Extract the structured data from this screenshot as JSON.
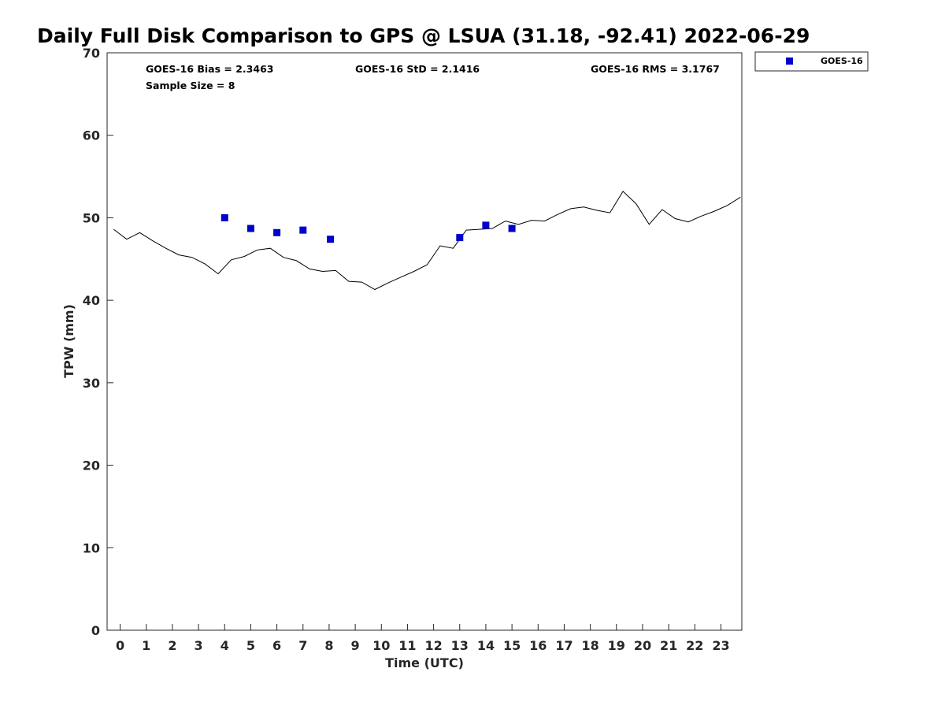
{
  "chart_data": {
    "type": "line+scatter",
    "title": "Daily Full Disk Comparison to GPS @ LSUA (31.18, -92.41) 2022-06-29",
    "xlabel": "Time (UTC)",
    "ylabel": "TPW (mm)",
    "xlim": [
      -0.5,
      23.8
    ],
    "ylim": [
      0,
      70
    ],
    "xticks": [
      0,
      1,
      2,
      3,
      4,
      5,
      6,
      7,
      8,
      9,
      10,
      11,
      12,
      13,
      14,
      15,
      16,
      17,
      18,
      19,
      20,
      21,
      22,
      23
    ],
    "yticks": [
      0,
      10,
      20,
      30,
      40,
      50,
      60,
      70
    ],
    "grid": false,
    "legend_position": "top-right",
    "stats": {
      "bias": "GOES-16 Bias = 2.3463",
      "std": "GOES-16 StD = 2.1416",
      "rms": "GOES-16 RMS = 3.1767",
      "sample_size": "Sample Size = 8"
    },
    "series": [
      {
        "style": "line",
        "color": "#000000",
        "x": [
          -0.25,
          0.25,
          0.75,
          1.25,
          1.75,
          2.25,
          2.75,
          3.25,
          3.75,
          4.25,
          4.75,
          5.25,
          5.75,
          6.25,
          6.75,
          7.25,
          7.75,
          8.25,
          8.75,
          9.25,
          9.75,
          10.25,
          10.75,
          11.25,
          11.75,
          12.25,
          12.75,
          13.25,
          13.75,
          14.25,
          14.75,
          15.25,
          15.75,
          16.25,
          16.75,
          17.25,
          17.75,
          18.25,
          18.75,
          19.25,
          19.75,
          20.25,
          20.75,
          21.25,
          21.75,
          22.25,
          22.75,
          23.25,
          23.75
        ],
        "y": [
          48.6,
          47.4,
          48.2,
          47.2,
          46.3,
          45.5,
          45.2,
          44.4,
          43.2,
          44.9,
          45.3,
          46.1,
          46.3,
          45.2,
          44.8,
          43.8,
          43.5,
          43.6,
          42.3,
          42.2,
          41.3,
          42.1,
          42.8,
          43.5,
          44.3,
          46.6,
          46.3,
          48.5,
          48.6,
          48.7,
          49.6,
          49.2,
          49.7,
          49.6,
          50.4,
          51.1,
          51.3,
          50.9,
          50.6,
          53.2,
          51.7,
          49.2,
          51.0,
          49.9,
          49.5,
          50.2,
          50.8,
          51.5,
          52.5
        ]
      },
      {
        "name": "GOES-16",
        "style": "scatter",
        "color": "#0000cc",
        "x": [
          4.0,
          5.0,
          6.0,
          7.0,
          8.05,
          13.0,
          14.0,
          15.0
        ],
        "y": [
          50.0,
          48.7,
          48.2,
          48.5,
          47.4,
          47.6,
          49.1,
          48.7
        ]
      }
    ]
  }
}
